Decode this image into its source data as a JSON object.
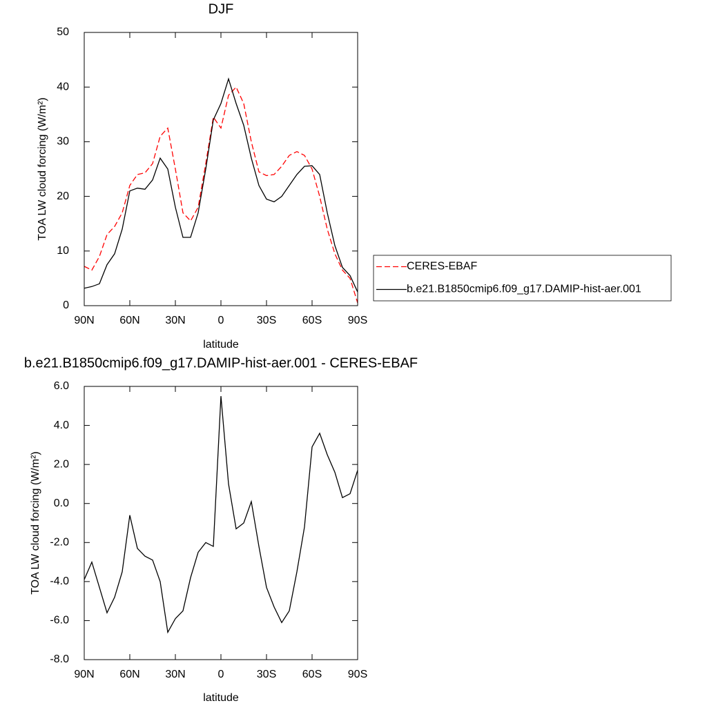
{
  "chart_data": [
    {
      "type": "line",
      "title": "DJF",
      "xlabel": "latitude",
      "ylabel": "TOA LW cloud forcing (W/m²)",
      "x": [
        90,
        85,
        80,
        75,
        70,
        65,
        60,
        55,
        50,
        45,
        40,
        35,
        30,
        25,
        20,
        15,
        10,
        5,
        0,
        -5,
        -10,
        -15,
        -20,
        -25,
        -30,
        -35,
        -40,
        -45,
        -50,
        -55,
        -60,
        -65,
        -70,
        -75,
        -80,
        -85,
        -90
      ],
      "series": [
        {
          "name": "CERES-EBAF",
          "color": "#ff0000",
          "dashed": true,
          "values": [
            7.2,
            6.5,
            9,
            13,
            14.5,
            17,
            22,
            24,
            24.3,
            26,
            31,
            32.5,
            25,
            17,
            15.5,
            18,
            26,
            34.5,
            32.5,
            38.5,
            40,
            37,
            30,
            24.5,
            23.8,
            24,
            25.5,
            27.5,
            28.2,
            27.5,
            25,
            20,
            14,
            9.5,
            6.5,
            5,
            0.5
          ]
        },
        {
          "name": "b.e21.B1850cmip6.f09_g17.DAMIP-hist-aer.001",
          "color": "#000000",
          "dashed": false,
          "values": [
            3.2,
            3.5,
            4,
            7.5,
            9.5,
            14,
            21,
            21.5,
            21.3,
            23,
            27,
            25,
            18,
            12.5,
            12.5,
            17,
            25,
            34,
            37,
            41.5,
            37,
            33,
            27,
            22,
            19.5,
            19,
            20,
            22,
            24,
            25.5,
            25.6,
            24,
            17,
            11,
            7,
            5.5,
            2.5
          ]
        }
      ],
      "xlim": [
        90,
        -90
      ],
      "xticks": [
        {
          "value": 90,
          "label": "90N"
        },
        {
          "value": 60,
          "label": "60N"
        },
        {
          "value": 30,
          "label": "30N"
        },
        0,
        {
          "value": -30,
          "label": "30S"
        },
        {
          "value": -60,
          "label": "60S"
        },
        {
          "value": -90,
          "label": "90S"
        }
      ],
      "ylim": [
        0,
        50
      ],
      "yticks": [
        0,
        10,
        20,
        30,
        40,
        50
      ]
    },
    {
      "type": "line",
      "title": "b.e21.B1850cmip6.f09_g17.DAMIP-hist-aer.001 - CERES-EBAF",
      "xlabel": "latitude",
      "ylabel": "TOA LW cloud forcing (W/m²)",
      "x": [
        90,
        85,
        80,
        75,
        70,
        65,
        60,
        55,
        50,
        45,
        40,
        35,
        30,
        25,
        20,
        15,
        10,
        5,
        0,
        -5,
        -10,
        -15,
        -20,
        -25,
        -30,
        -35,
        -40,
        -45,
        -50,
        -55,
        -60,
        -65,
        -70,
        -75,
        -80,
        -85,
        -90
      ],
      "series": [
        {
          "color": "#000000",
          "dashed": false,
          "values": [
            -3.9,
            -3,
            -4.3,
            -5.6,
            -4.8,
            -3.5,
            -0.6,
            -2.3,
            -2.7,
            -2.9,
            -4,
            -6.6,
            -5.9,
            -5.5,
            -3.8,
            -2.5,
            -2,
            -2.2,
            5.5,
            1,
            -1.3,
            -1,
            0.1,
            -2.2,
            -4.3,
            -5.3,
            -6.1,
            -5.5,
            -3.5,
            -1.2,
            2.9,
            3.6,
            2.5,
            1.6,
            0.3,
            0.5,
            1.7
          ]
        }
      ],
      "xlim": [
        90,
        -90
      ],
      "xticks": [
        {
          "value": 90,
          "label": "90N"
        },
        {
          "value": 60,
          "label": "60N"
        },
        {
          "value": 30,
          "label": "30N"
        },
        0,
        {
          "value": -30,
          "label": "30S"
        },
        {
          "value": -60,
          "label": "60S"
        },
        {
          "value": -90,
          "label": "90S"
        }
      ],
      "ylim": [
        -8,
        6
      ],
      "yticks": [
        {
          "value": -8,
          "label": "-8.0"
        },
        {
          "value": -6,
          "label": "-6.0"
        },
        {
          "value": -4,
          "label": "-4.0"
        },
        {
          "value": -2,
          "label": "-2.0"
        },
        {
          "value": 0,
          "label": "0.0"
        },
        {
          "value": 2,
          "label": "2.0"
        },
        {
          "value": 4,
          "label": "4.0"
        },
        {
          "value": 6,
          "label": "6.0"
        }
      ]
    }
  ]
}
